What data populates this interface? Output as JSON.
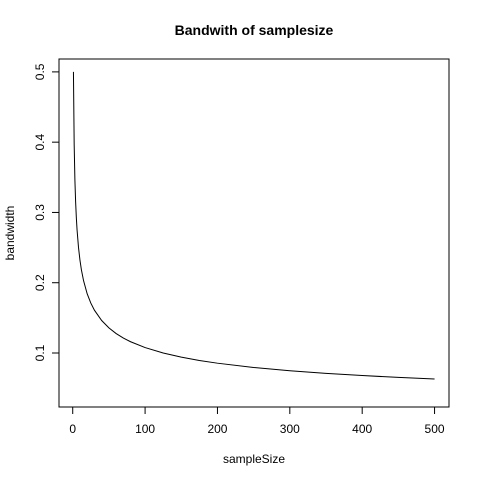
{
  "chart_data": {
    "type": "line",
    "title": "Bandwith of samplesize",
    "xlabel": "sampleSize",
    "ylabel": "bandwidth",
    "xlim": [
      1,
      500
    ],
    "ylim": [
      0.0415,
      0.5
    ],
    "grid": false,
    "x_ticks": [
      0,
      100,
      200,
      300,
      400,
      500
    ],
    "y_ticks": [
      0.1,
      0.2,
      0.3,
      0.4,
      0.5
    ],
    "x_tick_labels": [
      "0",
      "100",
      "200",
      "300",
      "400",
      "500"
    ],
    "y_tick_labels": [
      "0.1",
      "0.2",
      "0.3",
      "0.4",
      "0.5"
    ],
    "series": [
      {
        "color": "#000000",
        "x": [
          1,
          2,
          3,
          4,
          5,
          6,
          8,
          10,
          12,
          15,
          20,
          25,
          30,
          40,
          50,
          60,
          70,
          80,
          100,
          125,
          150,
          175,
          200,
          250,
          300,
          350,
          400,
          450,
          500
        ],
        "y": [
          0.5,
          0.3969,
          0.3467,
          0.315,
          0.2924,
          0.2752,
          0.25,
          0.2321,
          0.2184,
          0.2027,
          0.1842,
          0.171,
          0.1609,
          0.1462,
          0.1357,
          0.1277,
          0.1213,
          0.116,
          0.1077,
          0.1,
          0.0941,
          0.0894,
          0.0855,
          0.0794,
          0.0747,
          0.071,
          0.0679,
          0.0653,
          0.063
        ]
      }
    ]
  }
}
